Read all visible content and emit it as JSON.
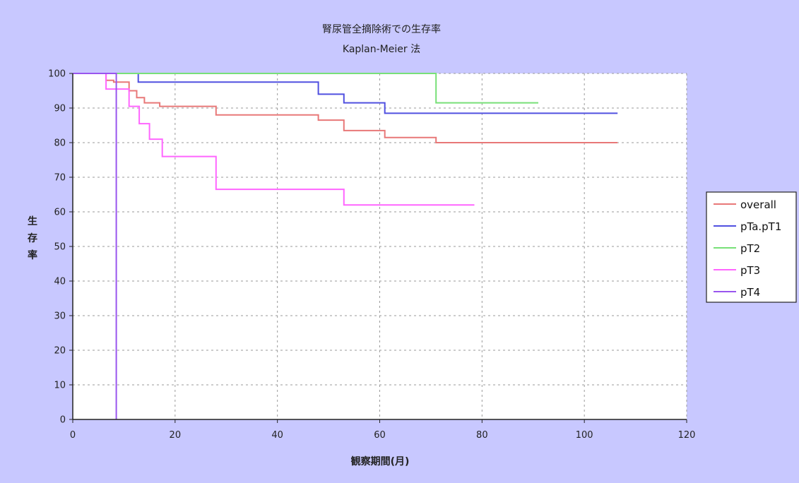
{
  "chart_data": {
    "type": "line",
    "step": true,
    "title": "腎尿管全摘除術での生存率",
    "subtitle": "Kaplan-Meier 法",
    "xlabel": "観察期間(月)",
    "ylabel": "生存率",
    "xlim": [
      0,
      120
    ],
    "ylim": [
      0,
      100
    ],
    "xticks": [
      0,
      20,
      40,
      60,
      80,
      100,
      120
    ],
    "yticks": [
      0,
      10,
      20,
      30,
      40,
      50,
      60,
      70,
      80,
      90,
      100
    ],
    "grid": true,
    "legend_position": "right",
    "colors": {
      "background": "#c8c8ff",
      "plot_area": "#ffffff",
      "grid": "#9a9a9a"
    },
    "series": [
      {
        "name": "overall",
        "color": "#e87878",
        "points": [
          [
            0,
            100
          ],
          [
            6.5,
            100
          ],
          [
            6.5,
            98
          ],
          [
            8,
            98
          ],
          [
            8,
            97.5
          ],
          [
            11,
            97.5
          ],
          [
            11,
            95
          ],
          [
            12.5,
            95
          ],
          [
            12.5,
            93
          ],
          [
            14,
            93
          ],
          [
            14,
            91.5
          ],
          [
            17,
            91.5
          ],
          [
            17,
            90.5
          ],
          [
            28,
            90.5
          ],
          [
            28,
            88
          ],
          [
            48,
            88
          ],
          [
            48,
            86.5
          ],
          [
            53,
            86.5
          ],
          [
            53,
            83.5
          ],
          [
            61,
            83.5
          ],
          [
            61,
            81.5
          ],
          [
            71,
            81.5
          ],
          [
            71,
            80
          ],
          [
            106.5,
            80
          ]
        ]
      },
      {
        "name": "pTa.pT1",
        "color": "#5050e0",
        "points": [
          [
            0,
            100
          ],
          [
            12.8,
            100
          ],
          [
            12.8,
            97.5
          ],
          [
            48,
            97.5
          ],
          [
            48,
            94
          ],
          [
            53,
            94
          ],
          [
            53,
            91.5
          ],
          [
            61,
            91.5
          ],
          [
            61,
            88.5
          ],
          [
            106.5,
            88.5
          ]
        ]
      },
      {
        "name": "pT2",
        "color": "#78e078",
        "points": [
          [
            0,
            100
          ],
          [
            71,
            100
          ],
          [
            71,
            91.5
          ],
          [
            91,
            91.5
          ]
        ]
      },
      {
        "name": "pT3",
        "color": "#ff66ff",
        "points": [
          [
            0,
            100
          ],
          [
            6.5,
            100
          ],
          [
            6.5,
            95.5
          ],
          [
            11,
            95.5
          ],
          [
            11,
            90.5
          ],
          [
            13,
            90.5
          ],
          [
            13,
            85.5
          ],
          [
            15,
            85.5
          ],
          [
            15,
            81
          ],
          [
            17.5,
            81
          ],
          [
            17.5,
            76
          ],
          [
            28,
            76
          ],
          [
            28,
            66.5
          ],
          [
            53,
            66.5
          ],
          [
            53,
            62
          ],
          [
            78.5,
            62
          ]
        ]
      },
      {
        "name": "pT4",
        "color": "#9955ee",
        "points": [
          [
            0,
            100
          ],
          [
            8.5,
            100
          ],
          [
            8.5,
            0
          ]
        ]
      }
    ]
  }
}
